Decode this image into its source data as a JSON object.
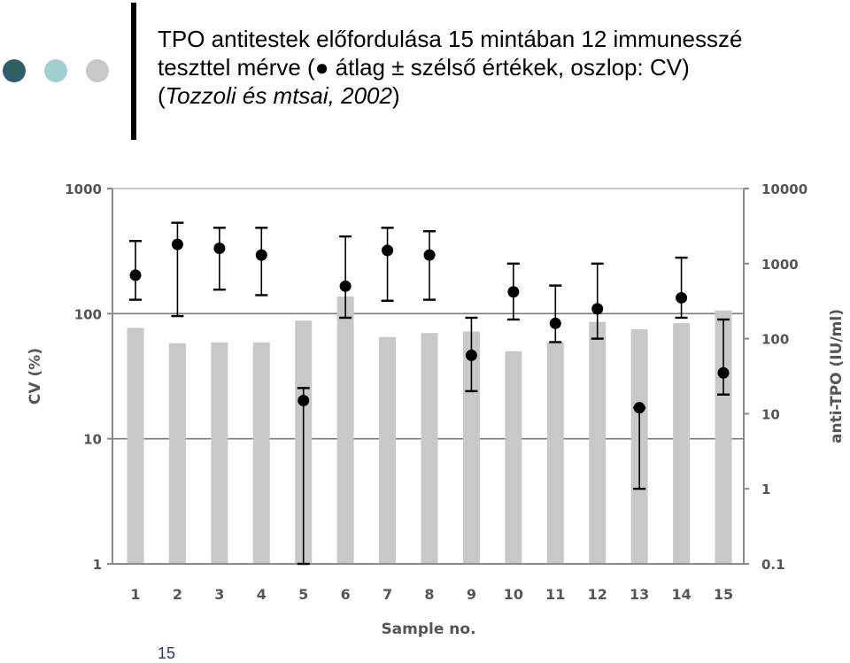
{
  "slide": {
    "title_line1": "TPO antitestek előfordulása 15 mintában 12 immunesszé",
    "title_line2": "teszttel mérve (● átlag ± szélső értékek, oszlop: CV)",
    "citation_open": "(",
    "citation_text": "Tozzoli és mtsai, 2002",
    "citation_close": ")",
    "slide_number": "15",
    "decor_colors": [
      "#2e5f66",
      "#9fcfd2",
      "#c8c8c8"
    ]
  },
  "chart_data": {
    "type": "bar",
    "xlabel": "Sample no.",
    "ylabel_left": "CV (%)",
    "ylabel_right": "anti-TPO (IU/ml)",
    "categories": [
      "1",
      "2",
      "3",
      "4",
      "5",
      "6",
      "7",
      "8",
      "9",
      "10",
      "11",
      "12",
      "13",
      "14",
      "15"
    ],
    "left_axis": {
      "scale": "log",
      "range": [
        1,
        1000
      ],
      "ticks": [
        1,
        10,
        100,
        1000
      ],
      "tick_labels": [
        "1",
        "10",
        "100",
        "1000"
      ]
    },
    "right_axis": {
      "scale": "log",
      "range": [
        0.1,
        10000
      ],
      "ticks": [
        0.1,
        1,
        10,
        100,
        1000,
        10000
      ],
      "tick_labels": [
        "0.1",
        "1",
        "10",
        "100",
        "1000",
        "10000"
      ]
    },
    "grid": {
      "horizontal_at_left_values": [
        10,
        100,
        1000
      ]
    },
    "series": [
      {
        "kind": "bar",
        "axis": "left",
        "color": "#c8c8c8",
        "values": [
          77,
          58,
          59,
          59,
          88,
          137,
          65,
          70,
          72,
          50,
          59,
          86,
          75,
          84,
          106
        ]
      },
      {
        "kind": "point_range",
        "axis": "right",
        "color": "#000000",
        "mean": [
          700,
          1800,
          1600,
          1300,
          15,
          500,
          1500,
          1300,
          60,
          420,
          160,
          250,
          12,
          350,
          35
        ],
        "min": [
          330,
          200,
          450,
          380,
          0.1,
          190,
          320,
          330,
          20,
          180,
          90,
          100,
          1,
          190,
          18
        ],
        "max": [
          2000,
          3500,
          3000,
          3000,
          22,
          2300,
          3000,
          2700,
          190,
          1000,
          510,
          1000,
          12,
          1200,
          180
        ]
      }
    ]
  }
}
